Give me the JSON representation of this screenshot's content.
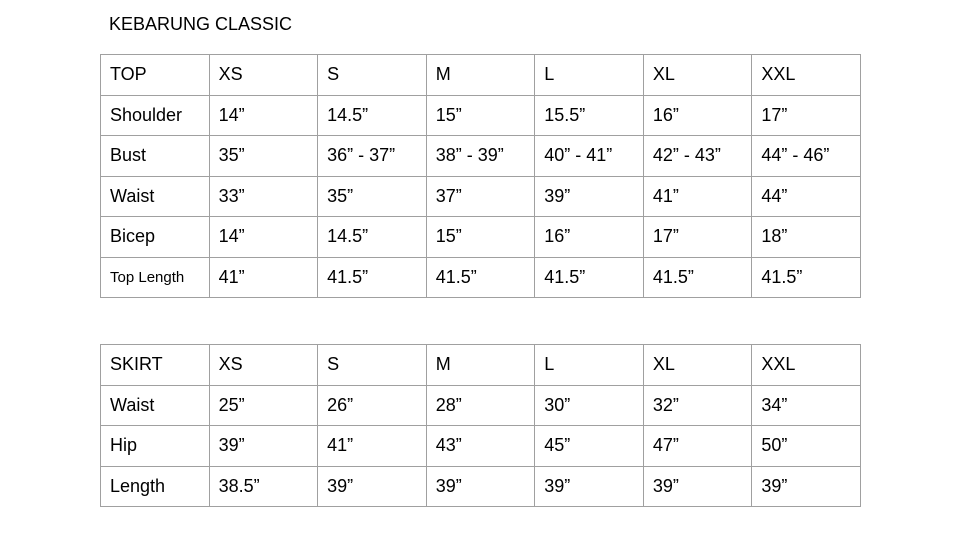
{
  "title": "KEBARUNG CLASSIC",
  "top_table": {
    "header": [
      "TOP",
      "XS",
      "S",
      "M",
      "L",
      "XL",
      "XXL"
    ],
    "rows": [
      [
        "Shoulder",
        "14”",
        "14.5”",
        "15”",
        "15.5”",
        "16”",
        "17”"
      ],
      [
        "Bust",
        "35”",
        "36” - 37”",
        "38” - 39”",
        "40” - 41”",
        "42” - 43”",
        "44” - 46”"
      ],
      [
        "Waist",
        "33”",
        "35”",
        "37”",
        "39”",
        "41”",
        "44”"
      ],
      [
        "Bicep",
        "14”",
        "14.5”",
        "15”",
        "16”",
        "17”",
        "18”"
      ],
      [
        "Top Length",
        "41”",
        "41.5”",
        "41.5”",
        "41.5”",
        "41.5”",
        "41.5”"
      ]
    ]
  },
  "skirt_table": {
    "header": [
      "SKIRT",
      "XS",
      "S",
      "M",
      "L",
      "XL",
      "XXL"
    ],
    "rows": [
      [
        "Waist",
        "25”",
        "26”",
        "28”",
        "30”",
        "32”",
        "34”"
      ],
      [
        "Hip",
        "39”",
        "41”",
        "43”",
        "45”",
        "47”",
        "50”"
      ],
      [
        "Length",
        "38.5”",
        "39”",
        "39”",
        "39”",
        "39”",
        "39”"
      ]
    ]
  }
}
